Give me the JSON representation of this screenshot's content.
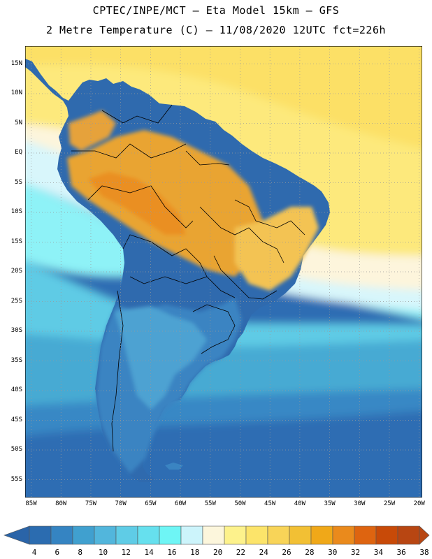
{
  "header": {
    "line1": "CPTEC/INPE/MCT –  Eta Model 15km – GFS",
    "line2": "2 Metre Temperature (C) – 11/08/2020 12UTC fct=226h"
  },
  "axes": {
    "lat_labels": [
      "15N",
      "10N",
      "5N",
      "EQ",
      "5S",
      "10S",
      "15S",
      "20S",
      "25S",
      "30S",
      "35S",
      "40S",
      "45S",
      "50S",
      "55S"
    ],
    "lat_values": [
      15,
      10,
      5,
      0,
      -5,
      -10,
      -15,
      -20,
      -25,
      -30,
      -35,
      -40,
      -45,
      -50,
      -55
    ],
    "lon_labels": [
      "85W",
      "80W",
      "75W",
      "70W",
      "65W",
      "60W",
      "55W",
      "50W",
      "45W",
      "40W",
      "35W",
      "30W",
      "25W",
      "20W"
    ],
    "lon_values": [
      -85,
      -80,
      -75,
      -70,
      -65,
      -60,
      -55,
      -50,
      -45,
      -40,
      -35,
      -30,
      -25,
      -20
    ],
    "lat_range": [
      -58,
      18
    ],
    "lon_range": [
      -86,
      -19.5
    ]
  },
  "colorbar": {
    "labels": [
      "4",
      "6",
      "8",
      "10",
      "12",
      "14",
      "16",
      "18",
      "20",
      "22",
      "24",
      "26",
      "28",
      "30",
      "32",
      "34",
      "36",
      "38"
    ],
    "colors": [
      "#2b6cb0",
      "#3584c2",
      "#40a0cf",
      "#52b6dc",
      "#5fcce6",
      "#66e0ee",
      "#6ef5f5",
      "#ccf4fb",
      "#fcf6dc",
      "#fdf28c",
      "#fce46a",
      "#f8d458",
      "#f2c034",
      "#f0a818",
      "#ea8a1c",
      "#de6410",
      "#c84a08",
      "#b84612"
    ],
    "under_color": "#2a64a8",
    "over_color": "#b84612"
  },
  "legend": {
    "ocean_colors": [
      "#2d6db3",
      "#3788c5",
      "#47aad3",
      "#5ecbe5",
      "#8ef2f7",
      "#d8f6fb",
      "#fdf5dc",
      "#fde97c",
      "#fce066"
    ],
    "land_colors": [
      "#2f6aae",
      "#3a84c2",
      "#4ea2d2",
      "#e9a430",
      "#ea8f22",
      "#e6a23a",
      "#f3c352"
    ]
  }
}
